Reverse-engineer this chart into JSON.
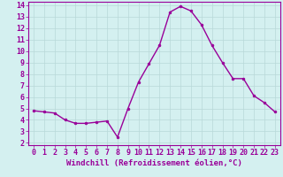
{
  "x": [
    0,
    1,
    2,
    3,
    4,
    5,
    6,
    7,
    8,
    9,
    10,
    11,
    12,
    13,
    14,
    15,
    16,
    17,
    18,
    19,
    20,
    21,
    22,
    23
  ],
  "y": [
    4.8,
    4.7,
    4.6,
    4.0,
    3.7,
    3.7,
    3.8,
    3.9,
    2.5,
    5.0,
    7.3,
    8.9,
    10.5,
    13.4,
    13.9,
    13.5,
    12.3,
    10.5,
    9.0,
    7.6,
    7.6,
    6.1,
    5.5,
    4.7
  ],
  "line_color": "#990099",
  "marker": "o",
  "markersize": 2,
  "linewidth": 1.0,
  "xlabel": "Windchill (Refroidissement éolien,°C)",
  "xlim": [
    -0.5,
    23.5
  ],
  "ylim": [
    1.8,
    14.3
  ],
  "yticks": [
    2,
    3,
    4,
    5,
    6,
    7,
    8,
    9,
    10,
    11,
    12,
    13,
    14
  ],
  "xticks": [
    0,
    1,
    2,
    3,
    4,
    5,
    6,
    7,
    8,
    9,
    10,
    11,
    12,
    13,
    14,
    15,
    16,
    17,
    18,
    19,
    20,
    21,
    22,
    23
  ],
  "background_color": "#d4f0f0",
  "grid_color": "#b8d8d8",
  "tick_color": "#990099",
  "label_color": "#990099",
  "xlabel_fontsize": 6.5,
  "tick_fontsize": 6
}
